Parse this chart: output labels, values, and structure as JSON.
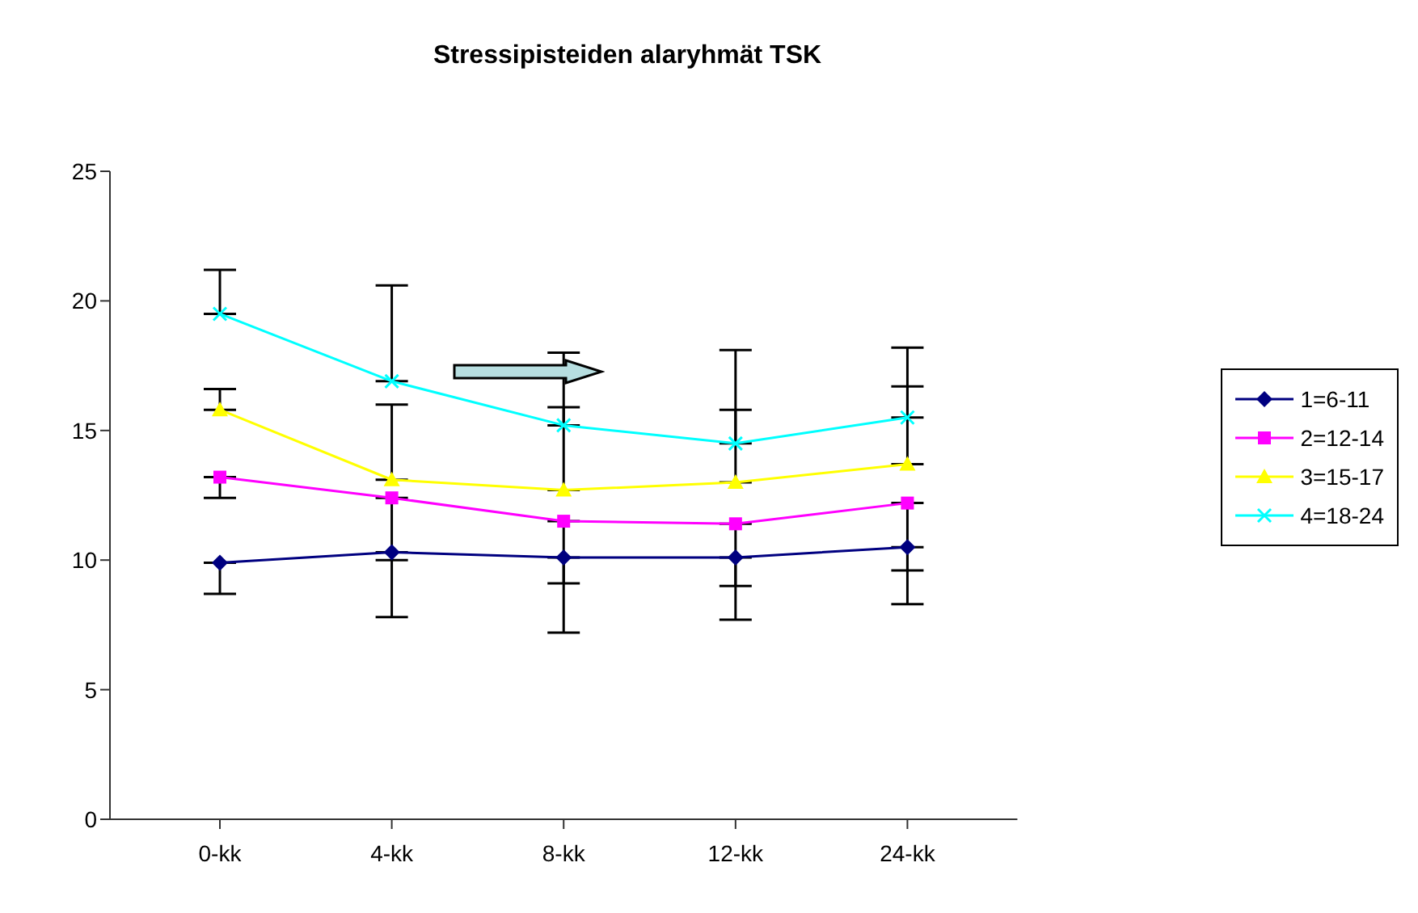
{
  "chart_data": {
    "type": "line",
    "title": "Stressipisteiden alaryhmät TSK",
    "categories": [
      "0-kk",
      "4-kk",
      "8-kk",
      "12-kk",
      "24-kk"
    ],
    "series": [
      {
        "name": "1=6-11",
        "color": "#000080",
        "marker": "diamond",
        "values": [
          9.9,
          10.3,
          10.1,
          10.1,
          10.5
        ],
        "errors": [
          [
            8.7,
            9.9
          ],
          [
            7.8,
            10.3
          ],
          [
            7.2,
            10.1
          ],
          [
            7.7,
            10.1
          ],
          [
            8.3,
            10.5
          ]
        ]
      },
      {
        "name": "2=12-14",
        "color": "#ff00ff",
        "marker": "square",
        "values": [
          13.2,
          12.4,
          11.5,
          11.4,
          12.2
        ],
        "errors": [
          [
            12.4,
            13.2
          ],
          [
            10.0,
            12.4
          ],
          [
            9.1,
            11.5
          ],
          [
            9.0,
            11.4
          ],
          [
            9.6,
            12.2
          ]
        ]
      },
      {
        "name": "3=15-17",
        "color": "#ffff00",
        "marker": "triangle",
        "values": [
          15.8,
          13.1,
          12.7,
          13.0,
          13.7
        ],
        "errors": [
          [
            15.8,
            16.6
          ],
          [
            13.1,
            16.0
          ],
          [
            12.7,
            15.9
          ],
          [
            13.0,
            15.8
          ],
          [
            13.7,
            16.7
          ]
        ]
      },
      {
        "name": "4=18-24",
        "color": "#00ffff",
        "marker": "cross",
        "values": [
          19.5,
          16.9,
          15.2,
          14.5,
          15.5
        ],
        "errors": [
          [
            19.5,
            21.2
          ],
          [
            16.9,
            20.6
          ],
          [
            15.2,
            18.0
          ],
          [
            14.5,
            18.1
          ],
          [
            15.5,
            18.2
          ]
        ]
      }
    ],
    "ylim": [
      0,
      25
    ],
    "yticks": [
      0,
      5,
      10,
      15,
      20,
      25
    ],
    "grid": false,
    "legend": "right"
  }
}
